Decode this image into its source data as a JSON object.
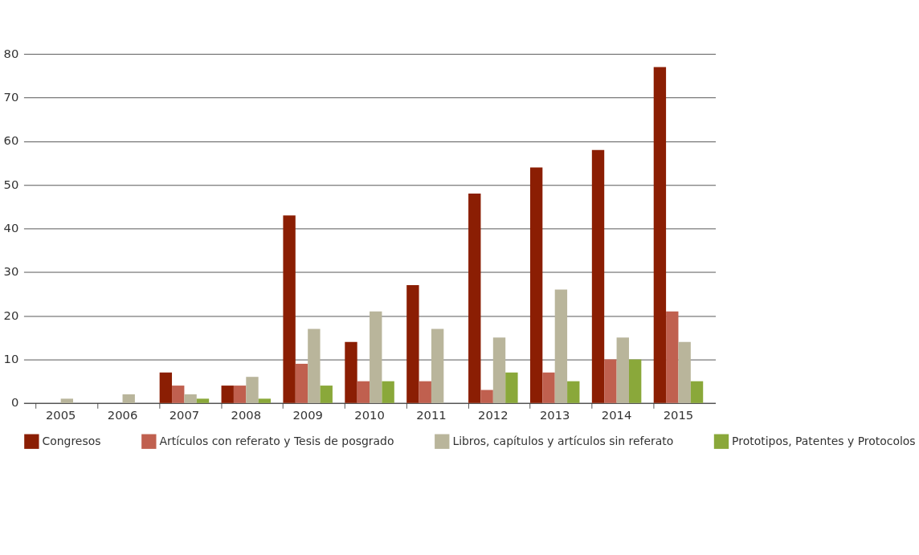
{
  "chart_data": {
    "type": "bar",
    "categories": [
      "2005",
      "2006",
      "2007",
      "2008",
      "2009",
      "2010",
      "2011",
      "2012",
      "2013",
      "2014",
      "2015"
    ],
    "series": [
      {
        "name": "Congresos",
        "color": "#8b1e03",
        "values": [
          0,
          0,
          7,
          4,
          43,
          14,
          27,
          48,
          54,
          58,
          77
        ]
      },
      {
        "name": "Artículos con referato y Tesis de posgrado",
        "color": "#c0604f",
        "values": [
          0,
          0,
          4,
          4,
          9,
          5,
          5,
          3,
          7,
          10,
          21
        ]
      },
      {
        "name": "Libros, capítulos y artículos sin referato",
        "color": "#b9b59b",
        "values": [
          1,
          2,
          2,
          6,
          17,
          21,
          17,
          15,
          26,
          15,
          14
        ]
      },
      {
        "name": "Prototipos, Patentes y Protocolos",
        "color": "#8aa83a",
        "values": [
          0,
          0,
          1,
          1,
          4,
          5,
          0,
          7,
          5,
          10,
          5
        ]
      }
    ],
    "ylim": [
      0,
      80
    ],
    "yticks": [
      0,
      10,
      20,
      30,
      40,
      50,
      60,
      70,
      80
    ],
    "grid": "y",
    "legend": "bottom"
  }
}
